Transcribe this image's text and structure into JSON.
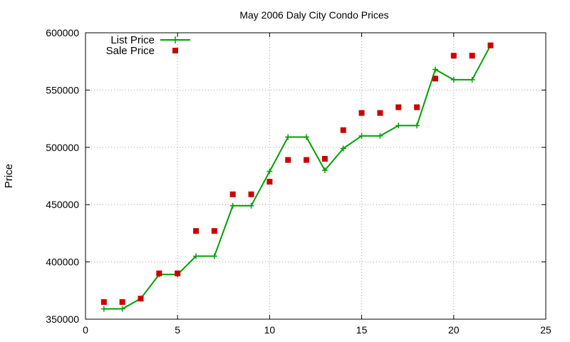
{
  "chart_data": {
    "type": "line",
    "title": "May 2006 Daly City Condo Prices",
    "xlabel": "",
    "ylabel": "Price",
    "xlim": [
      0,
      25
    ],
    "ylim": [
      350000,
      600000
    ],
    "xticks": [
      0,
      5,
      10,
      15,
      20,
      25
    ],
    "yticks": [
      350000,
      400000,
      450000,
      500000,
      550000,
      600000
    ],
    "grid": true,
    "legend_position": "top-left",
    "series": [
      {
        "name": "List Price",
        "style": "line-points",
        "color": "#00a000",
        "x": [
          1,
          2,
          3,
          4,
          5,
          6,
          7,
          8,
          9,
          10,
          11,
          12,
          13,
          14,
          15,
          16,
          17,
          18,
          19,
          20,
          21,
          22
        ],
        "y": [
          359000,
          359000,
          368000,
          389000,
          389000,
          405000,
          405000,
          449000,
          449000,
          479000,
          509000,
          509000,
          480000,
          499000,
          510000,
          510000,
          519000,
          519000,
          568000,
          559000,
          559000,
          589000
        ]
      },
      {
        "name": "Sale Price",
        "style": "points",
        "color": "#cc0000",
        "x": [
          1,
          2,
          3,
          4,
          5,
          6,
          7,
          8,
          9,
          10,
          11,
          12,
          13,
          14,
          15,
          16,
          17,
          18,
          19,
          20,
          21,
          22
        ],
        "y": [
          365000,
          365000,
          368000,
          390000,
          390000,
          427000,
          427000,
          459000,
          459000,
          470000,
          489000,
          489000,
          490000,
          515000,
          530000,
          530000,
          535000,
          535000,
          560000,
          580000,
          580000,
          589000
        ]
      }
    ]
  }
}
